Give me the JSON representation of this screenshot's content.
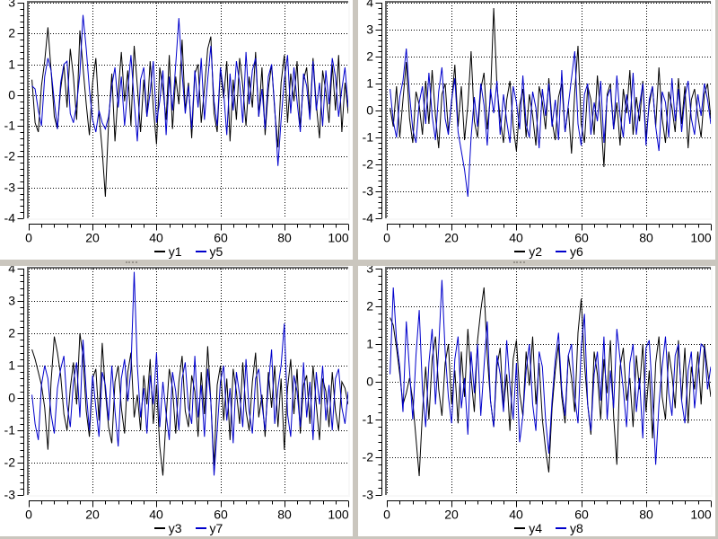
{
  "window": {
    "background": "#cac6be"
  },
  "colors": {
    "series_black": "#000000",
    "series_blue": "#0000cc",
    "grid": "#000000",
    "frame_dark": "#6a6a6a",
    "frame_light": "#f8f8f8",
    "text": "#000000"
  },
  "chart_data": [
    {
      "type": "line",
      "title": "",
      "xlabel": "",
      "ylabel": "",
      "grid": true,
      "legend_position": "bottom",
      "x_range": [
        0,
        100
      ],
      "y_range": [
        -4,
        3
      ],
      "x_ticks": [
        0,
        20,
        40,
        60,
        80,
        100
      ],
      "y_ticks": [
        -4,
        -3,
        -2,
        -1,
        0,
        1,
        2,
        3
      ],
      "x_minor_step": 4,
      "y_minor_step": 0.2,
      "x_start": 1,
      "x_step": 1,
      "series": [
        {
          "name": "y1",
          "color": "#000000",
          "values": [
            0.5,
            -0.9,
            -1.2,
            0.3,
            1.1,
            2.2,
            0.8,
            -0.7,
            -1.1,
            0.2,
            1.0,
            -0.4,
            1.5,
            0.6,
            -0.8,
            2.1,
            0.9,
            -0.3,
            -1.3,
            0.4,
            1.2,
            -0.6,
            -1.8,
            -3.3,
            -0.9,
            0.7,
            -1.5,
            0.1,
            1.4,
            -0.2,
            0.8,
            -1.0,
            1.6,
            0.3,
            -1.2,
            0.5,
            -0.7,
            1.1,
            -0.4,
            -1.6,
            0.9,
            0.2,
            -0.8,
            1.3,
            -1.1,
            0.6,
            -0.3,
            1.8,
            -0.5,
            0.4,
            -1.4,
            0.7,
            1.0,
            -0.9,
            0.2,
            1.5,
            1.9,
            -0.6,
            -1.2,
            0.8,
            -0.1,
            1.1,
            -1.5,
            0.5,
            -0.8,
            1.2,
            0.3,
            -1.0,
            0.6,
            -0.4,
            1.4,
            -0.7,
            0.9,
            -1.3,
            0.2,
            1.0,
            -0.5,
            -1.7,
            0.4,
            1.3,
            -0.9,
            0.7,
            -0.2,
            1.1,
            -1.1,
            0.5,
            0.9,
            -0.6,
            1.2,
            -0.3,
            -1.4,
            0.8,
            0.1,
            -0.9,
            1.0,
            -0.5,
            1.3,
            -1.2,
            0.4,
            -0.6
          ]
        },
        {
          "name": "y5",
          "color": "#0000cc",
          "values": [
            0.3,
            0.2,
            -0.5,
            -1.0,
            0.6,
            1.2,
            0.8,
            -0.2,
            -1.1,
            0.4,
            1.0,
            1.1,
            -0.6,
            -0.9,
            -0.3,
            0.7,
            2.6,
            1.5,
            0.2,
            -0.8,
            -1.2,
            -0.5,
            -0.9,
            -1.1,
            -0.7,
            0.3,
            0.9,
            -0.4,
            0.6,
            -1.0,
            0.2,
            1.3,
            -0.2,
            -1.5,
            0.5,
            0.9,
            -0.7,
            0.1,
            1.1,
            -0.9,
            -0.2,
            0.8,
            -1.3,
            0.6,
            -0.5,
            1.0,
            2.5,
            0.7,
            -0.6,
            0.3,
            -1.1,
            0.8,
            -0.4,
            1.2,
            -0.8,
            0.5,
            1.6,
            -0.2,
            -1.0,
            0.9,
            0.1,
            -1.3,
            0.7,
            -0.5,
            1.1,
            0.4,
            -0.9,
            1.4,
            -0.3,
            0.8,
            1.2,
            -0.7,
            0.2,
            -1.1,
            0.6,
            1.0,
            -0.4,
            -2.3,
            -0.8,
            0.5,
            1.3,
            -0.6,
            0.9,
            -0.2,
            -1.2,
            0.7,
            0.3,
            -0.8,
            1.1,
            -0.5,
            0.4,
            -1.0,
            0.8,
            -0.3,
            1.2,
            0.6,
            -0.7,
            0.2,
            0.9,
            -0.4
          ]
        }
      ]
    },
    {
      "type": "line",
      "title": "",
      "xlabel": "",
      "ylabel": "",
      "grid": true,
      "legend_position": "bottom",
      "x_range": [
        0,
        100
      ],
      "y_range": [
        -4,
        4
      ],
      "x_ticks": [
        0,
        20,
        40,
        60,
        80,
        100
      ],
      "y_ticks": [
        -4,
        -3,
        -2,
        -1,
        0,
        1,
        2,
        3,
        4
      ],
      "x_minor_step": 4,
      "y_minor_step": 0.2,
      "x_start": 1,
      "x_step": 1,
      "series": [
        {
          "name": "y2",
          "color": "#000000",
          "values": [
            0.1,
            -0.6,
            0.9,
            -1.0,
            0.4,
            1.8,
            -0.3,
            -1.2,
            0.7,
            0.2,
            -0.9,
            1.1,
            -0.5,
            1.5,
            -0.2,
            -1.4,
            0.6,
            1.0,
            -0.8,
            0.3,
            1.7,
            -0.6,
            0.9,
            -1.1,
            0.2,
            2.2,
            -0.4,
            -1.0,
            0.8,
            1.4,
            -0.7,
            0.5,
            3.8,
            0.9,
            -0.3,
            -1.2,
            0.4,
            1.1,
            -0.6,
            -1.5,
            0.2,
            0.8,
            -1.0,
            0.6,
            -0.2,
            -1.3,
            0.9,
            0.3,
            -0.7,
            1.2,
            -0.4,
            -1.1,
            0.5,
            1.0,
            -0.8,
            0.1,
            -1.6,
            0.7,
            2.4,
            -0.5,
            -1.2,
            0.9,
            0.4,
            -0.9,
            1.3,
            -0.2,
            -2.1,
            0.6,
            1.0,
            -0.7,
            0.3,
            -1.3,
            0.8,
            -0.1,
            1.5,
            -0.9,
            0.5,
            -0.4,
            1.1,
            -1.0,
            0.2,
            0.9,
            -0.6,
            1.6,
            -0.3,
            -1.2,
            0.7,
            0.1,
            -0.8,
            1.2,
            -0.5,
            0.9,
            -1.4,
            0.4,
            0.8,
            -0.2,
            -1.0,
            0.6,
            1.0,
            -0.3
          ]
        },
        {
          "name": "y6",
          "color": "#0000cc",
          "values": [
            0.8,
            -0.4,
            -1.0,
            0.5,
            1.1,
            2.3,
            0.6,
            -0.7,
            -1.2,
            0.3,
            0.9,
            -0.5,
            1.4,
            -0.2,
            -1.1,
            0.7,
            1.6,
            -0.3,
            -0.9,
            0.4,
            1.2,
            -0.8,
            -1.5,
            -2.2,
            -3.2,
            -1.0,
            0.5,
            -0.6,
            1.0,
            0.2,
            -1.3,
            0.8,
            -0.1,
            1.1,
            -0.9,
            0.6,
            -0.4,
            -1.2,
            0.9,
            0.3,
            -0.7,
            1.3,
            -0.5,
            -1.0,
            0.7,
            0.1,
            -1.4,
            0.8,
            -0.2,
            1.0,
            -0.6,
            0.4,
            -1.1,
            1.5,
            -0.8,
            0.2,
            1.2,
            2.2,
            -0.5,
            -1.3,
            0.6,
            1.0,
            -0.9,
            0.3,
            -0.4,
            1.1,
            -1.2,
            0.5,
            0.8,
            -0.7,
            1.3,
            -0.2,
            -1.0,
            0.6,
            -0.5,
            1.4,
            -0.9,
            0.2,
            1.0,
            -1.3,
            0.4,
            0.9,
            -0.6,
            -1.5,
            0.7,
            0.3,
            -1.0,
            1.2,
            -0.4,
            0.8,
            -0.8,
            0.5,
            1.1,
            -0.3,
            -0.9,
            0.6,
            -0.2,
            1.0,
            0.4,
            -0.5
          ]
        }
      ]
    },
    {
      "type": "line",
      "title": "",
      "xlabel": "",
      "ylabel": "",
      "grid": true,
      "legend_position": "bottom",
      "x_range": [
        0,
        100
      ],
      "y_range": [
        -3,
        4
      ],
      "x_ticks": [
        0,
        20,
        40,
        60,
        80,
        100
      ],
      "y_ticks": [
        -3,
        -2,
        -1,
        0,
        1,
        2,
        3,
        4
      ],
      "x_minor_step": 4,
      "y_minor_step": 0.2,
      "x_start": 1,
      "x_step": 1,
      "series": [
        {
          "name": "y3",
          "color": "#000000",
          "values": [
            1.5,
            1.2,
            0.8,
            0.4,
            -0.3,
            -1.6,
            0.5,
            1.9,
            1.4,
            0.7,
            -0.5,
            -1.0,
            0.3,
            1.1,
            -0.2,
            2.0,
            1.3,
            -0.4,
            -1.2,
            0.6,
            0.9,
            -0.7,
            1.7,
            0.2,
            -0.9,
            -1.4,
            0.5,
            1.0,
            -0.3,
            -1.1,
            0.8,
            1.4,
            -0.6,
            0.1,
            -1.0,
            0.7,
            -0.2,
            1.2,
            -0.8,
            0.4,
            -1.5,
            -2.4,
            -0.6,
            0.9,
            0.3,
            -1.1,
            0.5,
            1.3,
            -0.4,
            -0.9,
            0.7,
            0.2,
            -1.2,
            0.8,
            -0.5,
            1.6,
            -0.1,
            -2.1,
            0.4,
            1.0,
            -0.7,
            0.6,
            -1.3,
            0.9,
            0.2,
            -0.8,
            1.1,
            -0.4,
            -1.0,
            0.5,
            1.4,
            -0.6,
            0.1,
            -1.2,
            0.8,
            -0.3,
            1.0,
            -0.9,
            0.6,
            -1.6,
            0.3,
            1.2,
            -0.5,
            0.9,
            -1.1,
            0.4,
            0.7,
            -0.8,
            1.0,
            -0.2,
            -1.3,
            0.6,
            0.2,
            -0.9,
            0.8,
            -0.4,
            -1.0,
            0.5,
            0.3,
            -0.2
          ]
        },
        {
          "name": "y7",
          "color": "#0000cc",
          "values": [
            0.1,
            -0.8,
            -1.3,
            0.4,
            1.0,
            0.6,
            -0.5,
            -1.1,
            0.3,
            0.9,
            1.3,
            -0.2,
            -0.9,
            0.5,
            1.1,
            -0.6,
            1.8,
            0.2,
            -1.0,
            0.7,
            -0.3,
            -1.2,
            0.8,
            0.4,
            -0.7,
            1.0,
            -0.4,
            -1.5,
            0.6,
            1.2,
            -0.1,
            0.9,
            3.9,
            1.0,
            -0.6,
            0.3,
            -1.1,
            0.7,
            -0.2,
            1.4,
            -0.9,
            0.5,
            -0.5,
            -1.3,
            0.8,
            0.2,
            -1.0,
            0.6,
            1.1,
            -0.3,
            -0.8,
            1.3,
            -0.6,
            0.4,
            -1.2,
            0.9,
            -0.1,
            -2.4,
            -1.0,
            0.5,
            1.0,
            -0.7,
            0.3,
            -1.4,
            0.8,
            0.1,
            -0.9,
            1.2,
            -0.4,
            -1.1,
            0.6,
            0.9,
            -0.2,
            -1.0,
            0.4,
            1.5,
            -0.8,
            0.3,
            1.0,
            2.3,
            -0.5,
            -1.2,
            0.7,
            0.2,
            -0.9,
            1.1,
            -0.6,
            0.5,
            -1.3,
            0.8,
            -0.2,
            1.0,
            -0.7,
            0.4,
            -1.0,
            0.6,
            0.9,
            -0.3,
            -0.8,
            0.2
          ]
        }
      ]
    },
    {
      "type": "line",
      "title": "",
      "xlabel": "",
      "ylabel": "",
      "grid": true,
      "legend_position": "bottom",
      "x_range": [
        0,
        100
      ],
      "y_range": [
        -3,
        3
      ],
      "x_ticks": [
        0,
        20,
        40,
        60,
        80,
        100
      ],
      "y_ticks": [
        -3,
        -2,
        -1,
        0,
        1,
        2,
        3
      ],
      "x_minor_step": 4,
      "y_minor_step": 0.2,
      "x_start": 1,
      "x_step": 1,
      "series": [
        {
          "name": "y4",
          "color": "#000000",
          "values": [
            1.7,
            1.5,
            0.9,
            0.2,
            -0.6,
            -0.3,
            0.1,
            -0.5,
            -1.5,
            -2.5,
            -0.8,
            0.4,
            -1.0,
            0.6,
            1.2,
            -0.2,
            -0.9,
            0.5,
            1.0,
            -0.6,
            0.3,
            -1.1,
            0.8,
            -0.4,
            1.4,
            0.1,
            -0.8,
            1.1,
            1.9,
            2.5,
            0.7,
            -0.5,
            -1.2,
            0.4,
            0.9,
            -0.7,
            0.2,
            -1.3,
            0.6,
            1.1,
            -0.3,
            -0.9,
            0.8,
            -0.1,
            1.2,
            -0.6,
            0.5,
            -1.0,
            -1.8,
            -2.4,
            -0.7,
            0.3,
            1.0,
            -0.4,
            -1.1,
            0.7,
            0.1,
            -0.8,
            1.3,
            2.2,
            0.5,
            -0.6,
            -1.4,
            0.8,
            0.2,
            -1.0,
            0.6,
            -0.3,
            1.1,
            -0.9,
            -2.2,
            0.4,
            0.9,
            -0.5,
            0.1,
            -1.2,
            0.7,
            -0.2,
            1.0,
            -0.8,
            0.3,
            -1.5,
            0.5,
            1.2,
            -0.4,
            -1.0,
            0.8,
            0.2,
            -0.7,
            1.1,
            -0.5,
            0.9,
            -1.1,
            0.4,
            -0.2,
            0.8,
            -0.6,
            1.0,
            0.3,
            -0.4
          ]
        },
        {
          "name": "y8",
          "color": "#0000cc",
          "values": [
            0.2,
            2.5,
            1.1,
            0.4,
            -0.8,
            1.6,
            0.3,
            -1.0,
            0.7,
            1.9,
            -0.2,
            -1.2,
            0.5,
            1.4,
            -0.6,
            0.9,
            2.7,
            0.8,
            -0.4,
            -1.1,
            0.6,
            1.2,
            -0.7,
            0.1,
            -1.4,
            0.8,
            -0.3,
            1.0,
            -0.9,
            0.4,
            1.6,
            -0.5,
            -1.2,
            0.7,
            0.2,
            -0.8,
            1.1,
            -0.1,
            -1.0,
            0.5,
            -1.6,
            -0.9,
            0.3,
            1.0,
            -0.6,
            -1.3,
            0.8,
            0.4,
            -1.0,
            -1.9,
            -0.5,
            0.6,
            1.3,
            -0.2,
            -0.9,
            0.7,
            1.0,
            -0.4,
            -1.1,
            0.9,
            1.8,
            -0.6,
            -1.3,
            0.2,
            0.8,
            -0.5,
            1.2,
            -1.0,
            0.3,
            -0.7,
            1.4,
            0.6,
            -0.2,
            -1.2,
            0.5,
            1.0,
            -0.8,
            0.1,
            -1.5,
            0.9,
            1.1,
            -0.4,
            -2.2,
            -0.6,
            0.4,
            1.2,
            -0.3,
            -0.9,
            0.7,
            1.0,
            -0.5,
            -1.1,
            0.3,
            0.8,
            -0.7,
            0.2,
            1.0,
            0.9,
            -0.2,
            0.4
          ]
        }
      ]
    }
  ]
}
